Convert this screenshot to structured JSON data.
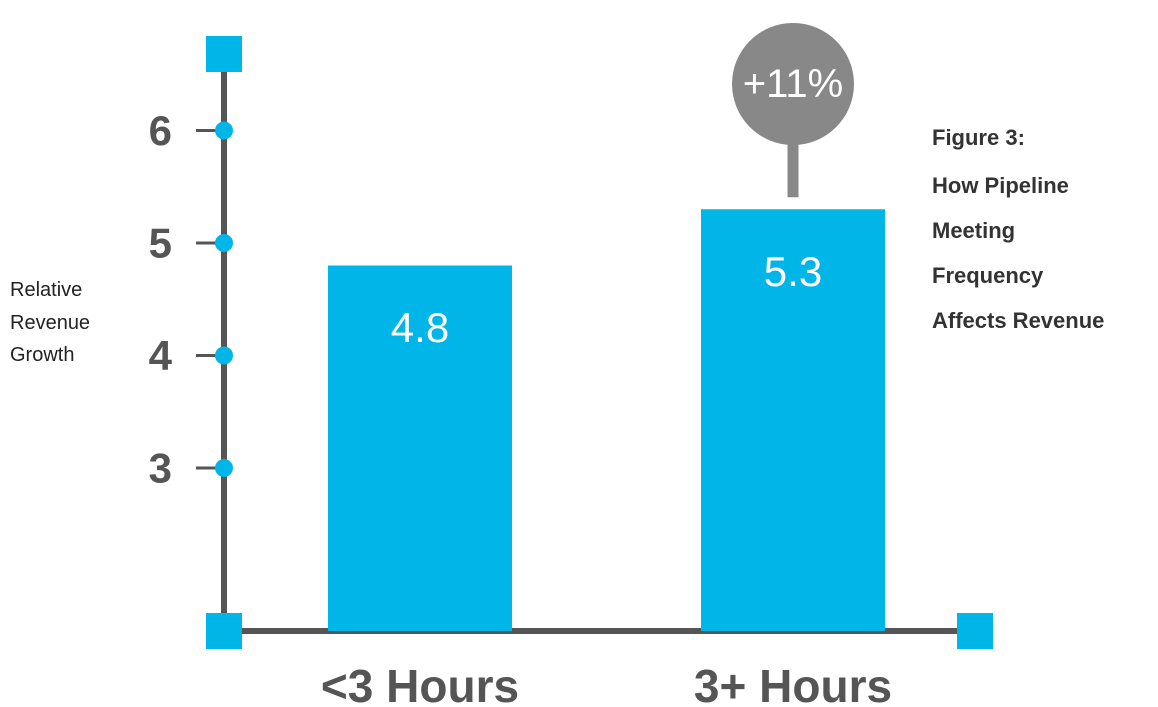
{
  "chart_data": {
    "type": "bar",
    "title_lines": [
      "Figure 3:",
      "How Pipeline",
      "Meeting",
      "Frequency",
      "Affects Revenue"
    ],
    "ylabel_lines": [
      "Relative",
      "Revenue",
      "Growth"
    ],
    "xlabel": "",
    "categories": [
      "<3 Hours",
      "3+ Hours"
    ],
    "values": [
      4.8,
      5.3
    ],
    "value_labels": [
      "4.8",
      "5.3"
    ],
    "yticks": [
      3,
      4,
      5,
      6
    ],
    "ytick_labels": [
      "3",
      "4",
      "5",
      "6"
    ],
    "ylim": [
      2.0,
      6.8
    ],
    "grid": false,
    "legend": "none",
    "annotation": {
      "text": "+11%",
      "target_category": "3+ Hours"
    },
    "colors": {
      "bar": "#00b5e8",
      "axis": "#555555",
      "callout": "#888888",
      "marker": "#00b5e8"
    }
  }
}
